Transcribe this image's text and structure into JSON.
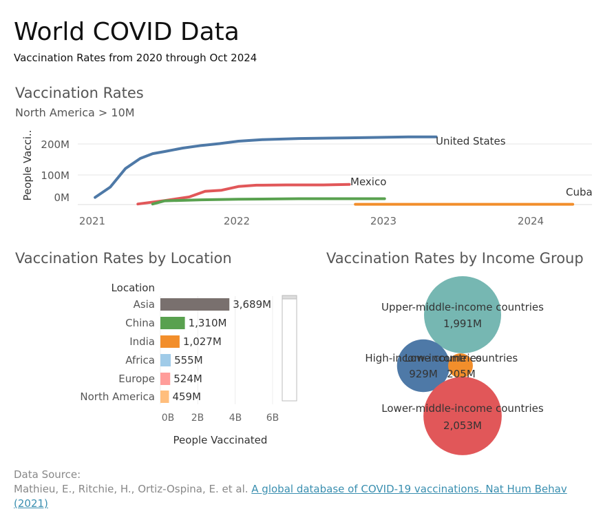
{
  "header": {
    "title": "World COVID Data",
    "subtitle": "Vaccination Rates from 2020 through Oct 2024"
  },
  "line_section": {
    "title": "Vaccination Rates",
    "filter_label": "North America > 10M"
  },
  "bar_section": {
    "title": "Vaccination Rates by Location"
  },
  "bubble_section": {
    "title": "Vaccination Rates by Income Group"
  },
  "source": {
    "label": "Data Source:",
    "authors": "Mathieu, E., Ritchie, H., Ortiz-Ospina, E. et al. ",
    "link_text": "A global database of COVID-19 vaccinations. Nat Hum Behav (2021)"
  },
  "colors": {
    "us": "#4e79a7",
    "mexico": "#e15759",
    "green": "#59a14f",
    "cuba": "#f28e2b",
    "asia": "#79706e",
    "china": "#59a14f",
    "india": "#f28e2b",
    "africa": "#a0cbe8",
    "europe": "#ff9d9a",
    "north_america": "#ffbe7d",
    "upper_middle": "#76b7b2",
    "high": "#4e79a7",
    "low": "#f28e2b",
    "lower_middle": "#e15759"
  },
  "chart_data": [
    {
      "type": "line",
      "title": "Vaccination Rates",
      "subtitle": "North America > 10M",
      "xlabel": "",
      "ylabel": "People Vacci..",
      "x_ticks": [
        "2021",
        "2022",
        "2023",
        "2024"
      ],
      "y_ticks": [
        "0M",
        "100M",
        "200M"
      ],
      "ylim": [
        -25,
        240
      ],
      "grid": true,
      "series": [
        {
          "name": "United States",
          "color": "#4e79a7",
          "points": [
            [
              "2021-01-08",
              1
            ],
            [
              "2021-02-15",
              40
            ],
            [
              "2021-03-25",
              110
            ],
            [
              "2021-05-01",
              148
            ],
            [
              "2021-06-01",
              166
            ],
            [
              "2021-07-01",
              174
            ],
            [
              "2021-08-15",
              187
            ],
            [
              "2021-10-01",
              197
            ],
            [
              "2021-11-15",
              204
            ],
            [
              "2022-01-01",
              213
            ],
            [
              "2022-03-01",
              219
            ],
            [
              "2022-06-01",
              223
            ],
            [
              "2022-09-01",
              225
            ],
            [
              "2022-12-01",
              227
            ],
            [
              "2023-03-01",
              229
            ],
            [
              "2023-05-10",
              229
            ]
          ]
        },
        {
          "name": "Mexico",
          "color": "#e15759",
          "points": [
            [
              "2021-04-25",
              -24
            ],
            [
              "2021-07-01",
              -11
            ],
            [
              "2021-09-01",
              3
            ],
            [
              "2021-10-10",
              24
            ],
            [
              "2021-11-20",
              28
            ],
            [
              "2022-01-01",
              42
            ],
            [
              "2022-02-15",
              47
            ],
            [
              "2022-05-01",
              48
            ],
            [
              "2022-08-01",
              48
            ],
            [
              "2022-10-05",
              50
            ]
          ]
        },
        {
          "name": "",
          "color": "#59a14f",
          "points": [
            [
              "2021-06-01",
              -24
            ],
            [
              "2021-07-01",
              -12
            ],
            [
              "2021-10-01",
              -8
            ],
            [
              "2022-01-01",
              -6
            ],
            [
              "2022-06-01",
              -4
            ],
            [
              "2023-01-01",
              -4
            ]
          ]
        },
        {
          "name": "Cuba",
          "color": "#f28e2b",
          "points": [
            [
              "2022-10-20",
              -25
            ],
            [
              "2024-04-15",
              -25
            ]
          ]
        }
      ]
    },
    {
      "type": "bar",
      "title": "Vaccination Rates by Location",
      "legend_title": "Location",
      "categories": [
        "Asia",
        "China",
        "India",
        "Africa",
        "Europe",
        "North America"
      ],
      "values": [
        3689,
        1310,
        1027,
        555,
        524,
        459
      ],
      "value_labels": [
        "3,689M",
        "1,310M",
        "1,027M",
        "555M",
        "524M",
        "459M"
      ],
      "x_ticks": [
        "0B",
        "2B",
        "4B",
        "6B"
      ],
      "xlim": [
        0,
        6500
      ],
      "xlabel": "People Vaccinated",
      "colors": [
        "#79706e",
        "#59a14f",
        "#f28e2b",
        "#a0cbe8",
        "#ff9d9a",
        "#ffbe7d"
      ]
    },
    {
      "type": "bubble",
      "title": "Vaccination Rates by Income Group",
      "bubbles": [
        {
          "name": "Upper-middle-income countries",
          "label": "1,991M",
          "value": 1991,
          "color": "#76b7b2"
        },
        {
          "name": "High-income countries",
          "label": "929M",
          "value": 929,
          "color": "#4e79a7"
        },
        {
          "name": "Low-income countries",
          "label": "205M",
          "value": 205,
          "color": "#f28e2b"
        },
        {
          "name": "Lower-middle-income countries",
          "label": "2,053M",
          "value": 2053,
          "color": "#e15759"
        }
      ]
    }
  ]
}
